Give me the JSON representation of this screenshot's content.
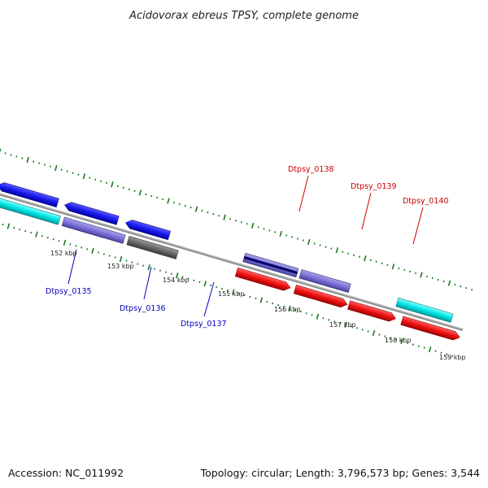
{
  "title": "Acidovorax ebreus TPSY, complete genome",
  "footer": {
    "accession": "Accession: NC_011992",
    "summary": "Topology: circular; Length: 3,796,573 bp; Genes: 3,544"
  },
  "scale_labels": [
    "152 kbp",
    "153 kbp",
    "154 kbp",
    "155 kbp",
    "156 kbp",
    "157 kbp",
    "158 kbp",
    "159 kbp"
  ],
  "gene_labels": [
    {
      "text": "Dtpsy_0135",
      "color": "#0000bb"
    },
    {
      "text": "Dtpsy_0136",
      "color": "#0000bb"
    },
    {
      "text": "Dtpsy_0137",
      "color": "#0000bb"
    },
    {
      "text": "Dtpsy_0138",
      "color": "#cc0000"
    },
    {
      "text": "Dtpsy_0139",
      "color": "#cc0000"
    },
    {
      "text": "Dtpsy_0140",
      "color": "#cc0000"
    }
  ],
  "feature_colors": {
    "blue": "#1a1aee",
    "cyan": "#00e5e5",
    "lightgray": "#c8c8c8",
    "purple": "#7b72d6",
    "darkgray": "#686868",
    "red": "#ee1111",
    "backbone": "#8c8c8c",
    "tick": "#1a7a1a"
  }
}
